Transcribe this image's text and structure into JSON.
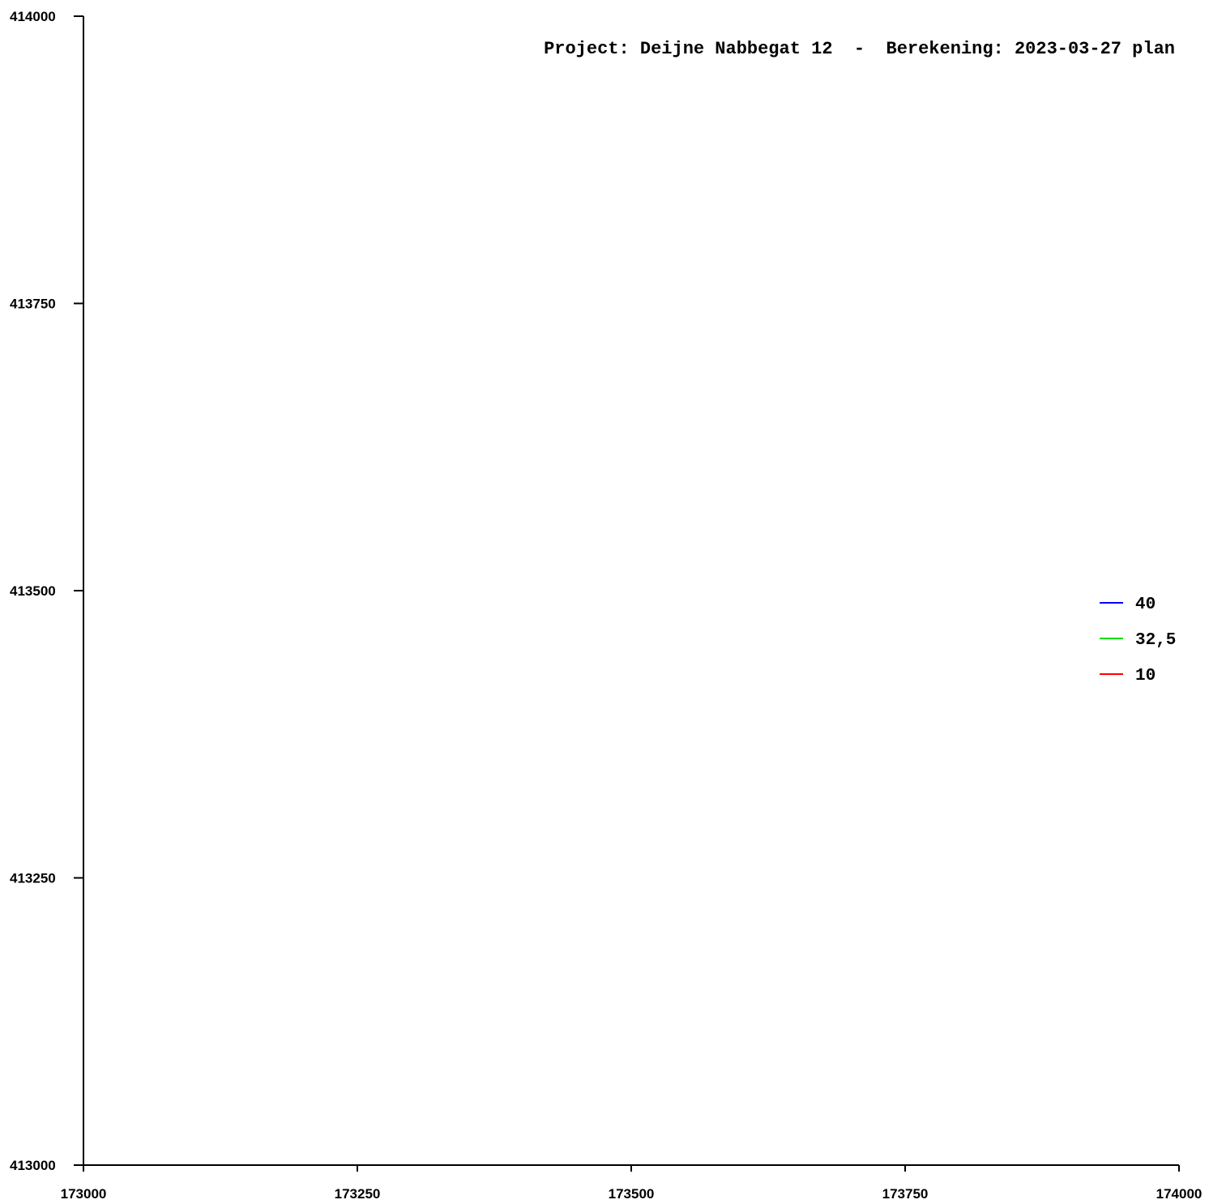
{
  "chart_data": {
    "type": "line",
    "title": "Project: Deijne Nabbegat 12  -  Berekening: 2023-03-27 plan",
    "xlabel": "",
    "ylabel": "",
    "xlim": [
      173000,
      174000
    ],
    "ylim": [
      413000,
      414000
    ],
    "x_ticks": [
      173000,
      173250,
      173500,
      173750,
      174000
    ],
    "y_ticks": [
      413000,
      413250,
      413500,
      413750,
      414000
    ],
    "grid": false,
    "legend_position": "right",
    "series": [
      {
        "name": "40",
        "color": "#0000ff",
        "points": []
      },
      {
        "name": "32,5",
        "color": "#00dd00",
        "points": []
      },
      {
        "name": "10",
        "color": "#ff0000",
        "points": []
      }
    ]
  }
}
